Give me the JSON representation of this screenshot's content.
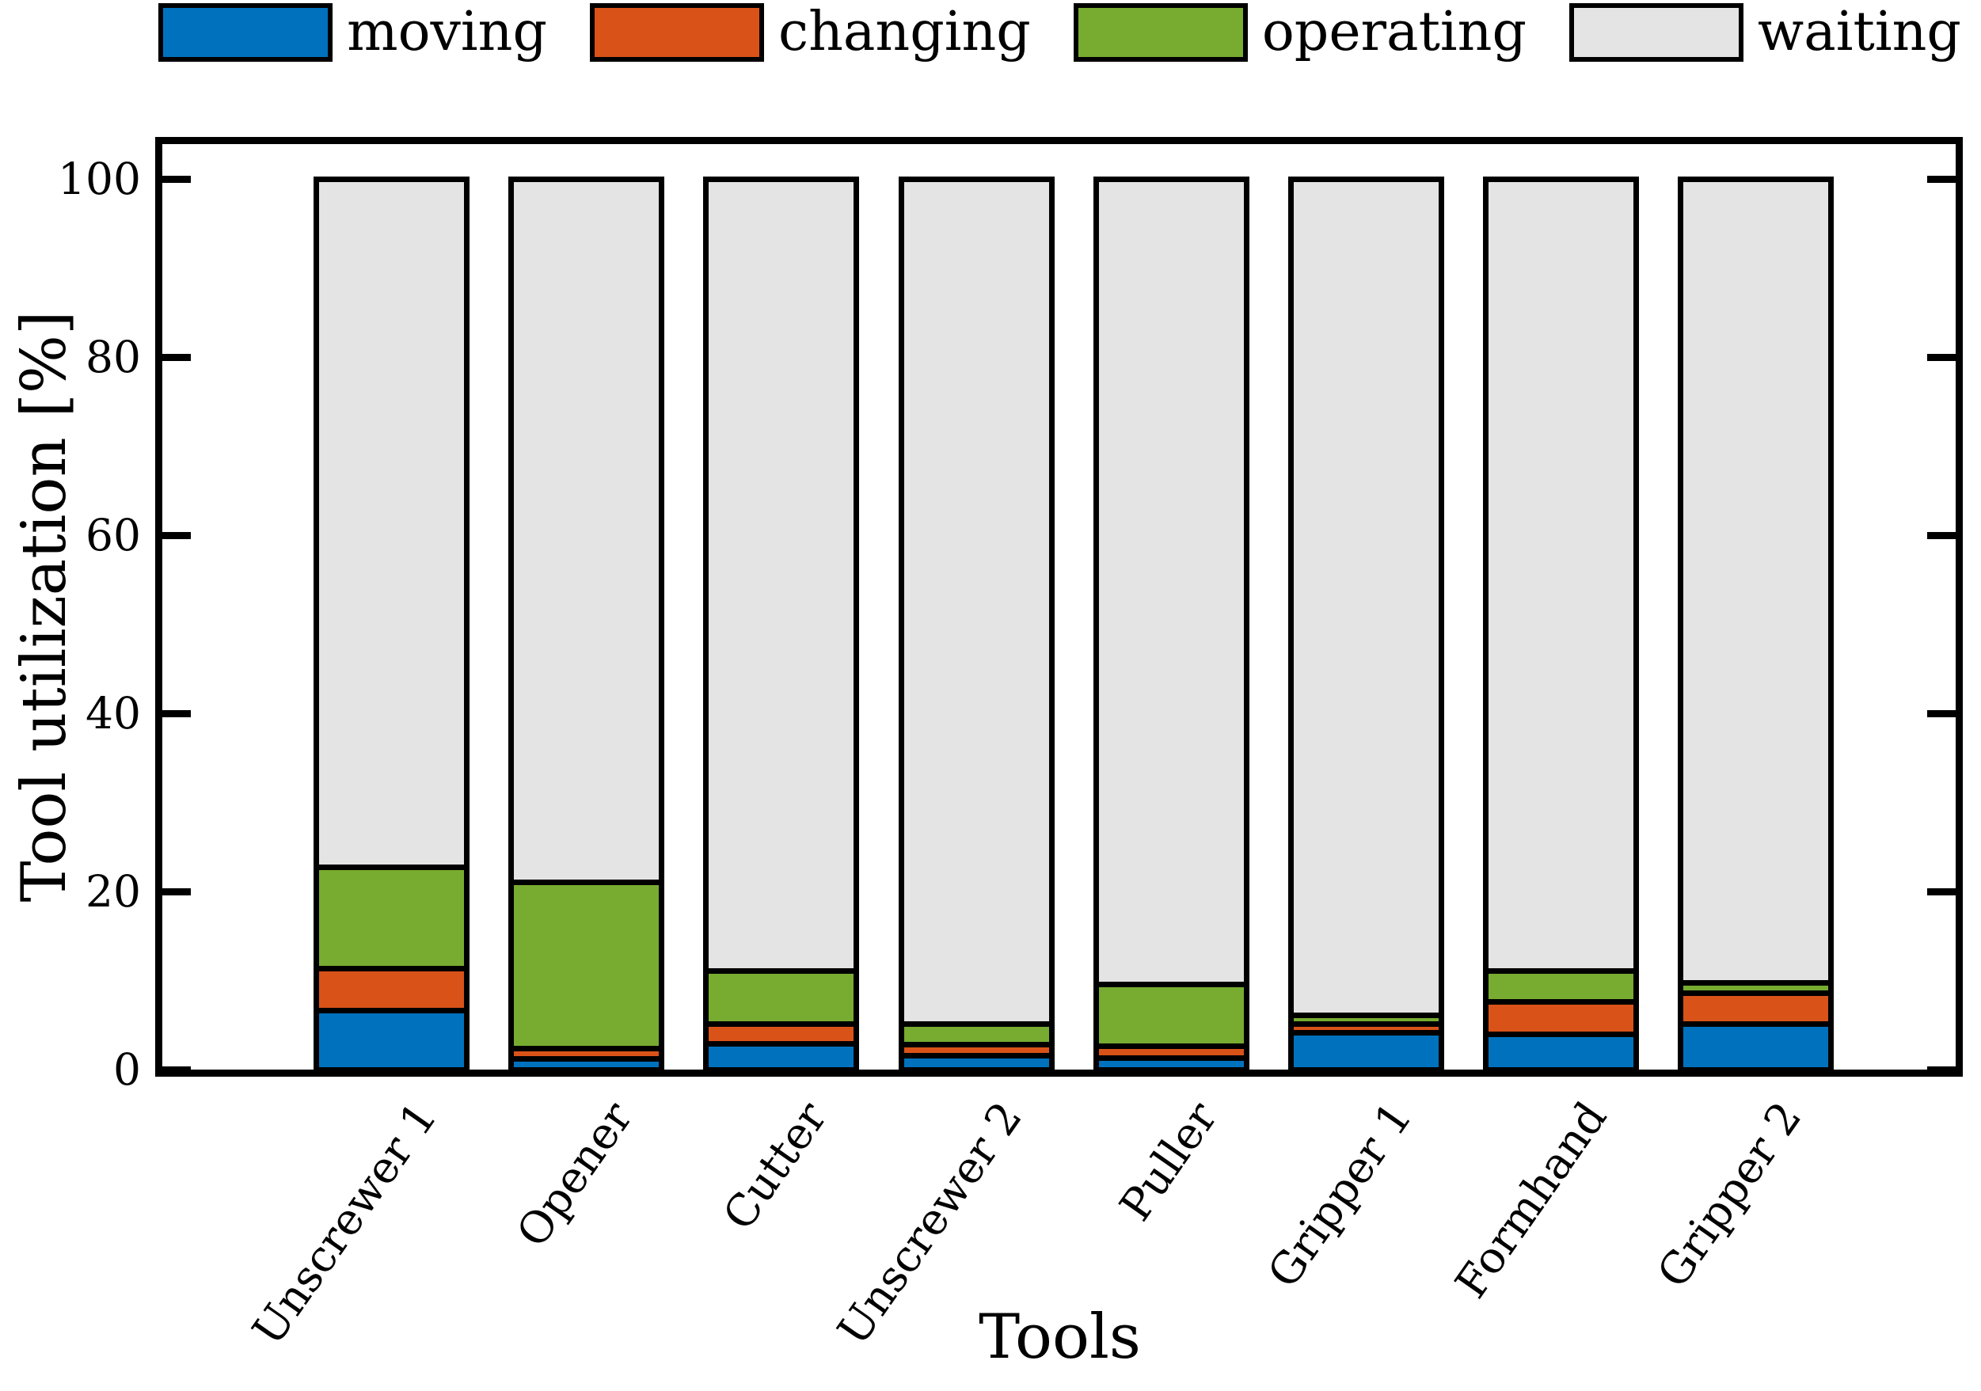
{
  "chart_data": {
    "type": "bar",
    "stacked": true,
    "title": "",
    "xlabel": "Tools",
    "ylabel": "Tool utilization [%]",
    "ylim": [
      0,
      100
    ],
    "yticks": [
      0,
      20,
      40,
      60,
      80,
      100
    ],
    "grid": false,
    "legend_position": "top",
    "categories": [
      "Unscrewer 1",
      "Opener",
      "Cutter",
      "Unscrewer 2",
      "Puller",
      "Gripper 1",
      "Formhand",
      "Gripper 2"
    ],
    "series": [
      {
        "name": "moving",
        "color": "#0072BD",
        "values": [
          6.6,
          1.2,
          2.9,
          1.6,
          1.3,
          4.1,
          4.0,
          5.1
        ]
      },
      {
        "name": "changing",
        "color": "#D95319",
        "values": [
          4.7,
          1.2,
          2.2,
          1.2,
          1.3,
          1.0,
          3.6,
          3.5
        ]
      },
      {
        "name": "operating",
        "color": "#77AC30",
        "values": [
          11.4,
          18.6,
          6.0,
          2.3,
          7.0,
          1.0,
          3.5,
          1.1
        ]
      },
      {
        "name": "waiting",
        "color": "#E4E4E4",
        "values": [
          77.3,
          79.0,
          88.9,
          94.9,
          90.4,
          93.9,
          88.9,
          90.3
        ]
      }
    ],
    "colors": {
      "bar_edge": "#000000",
      "axis": "#000000",
      "background": "#ffffff"
    }
  }
}
